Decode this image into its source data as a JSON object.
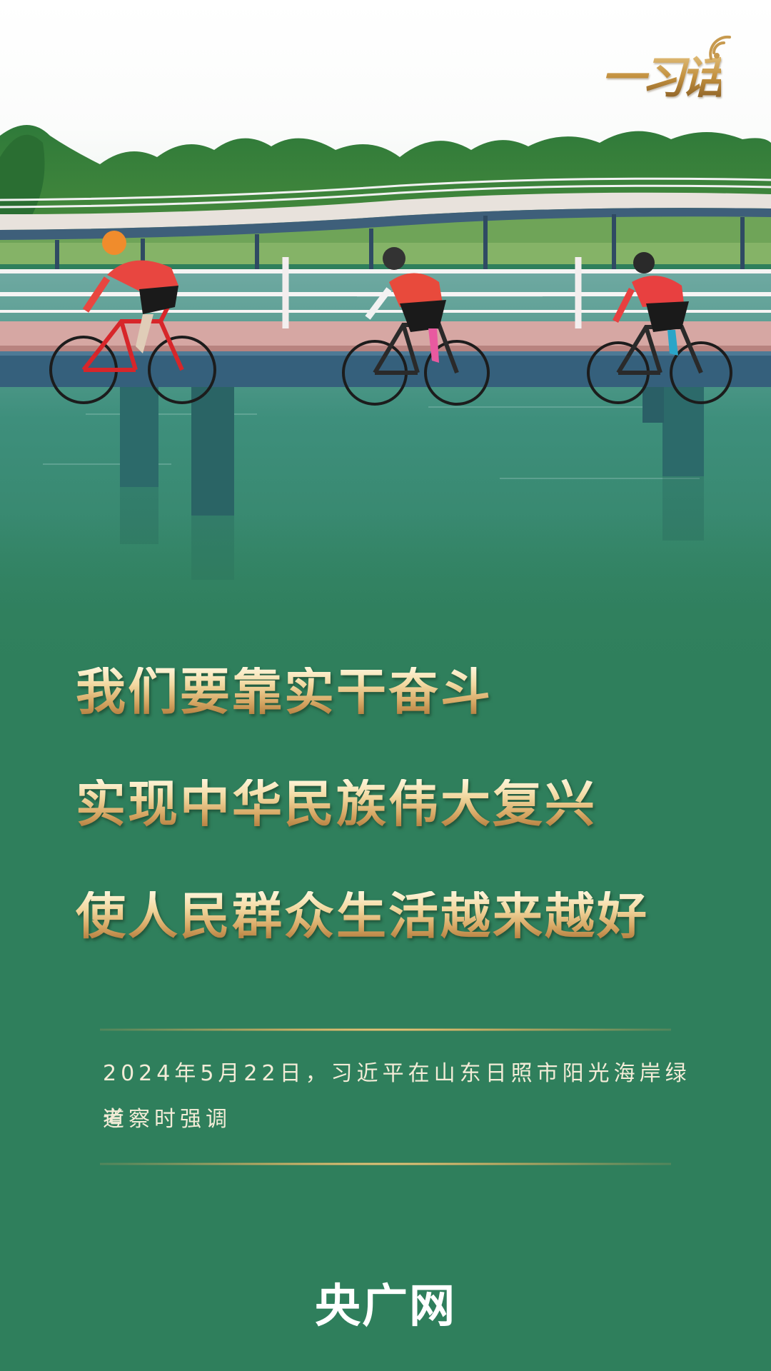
{
  "logo": {
    "text": "一习话",
    "icon": "broadcast-signal-icon"
  },
  "photo": {
    "icon": "cyclists-on-lakeside-boardwalk-photo"
  },
  "headline": {
    "line1": "我们要靠实干奋斗",
    "line2": "实现中华民族伟大复兴",
    "line3": "使人民群众生活越来越好"
  },
  "caption": {
    "line1": "2024年5月22日，习近平在山东日照市阳光海岸绿道",
    "line2": "考察时强调"
  },
  "brand": "央广网",
  "colors": {
    "background": "#2f7f5c",
    "gold": "#d7a865",
    "caption": "#f3ecd7",
    "brand": "#ffffff"
  }
}
